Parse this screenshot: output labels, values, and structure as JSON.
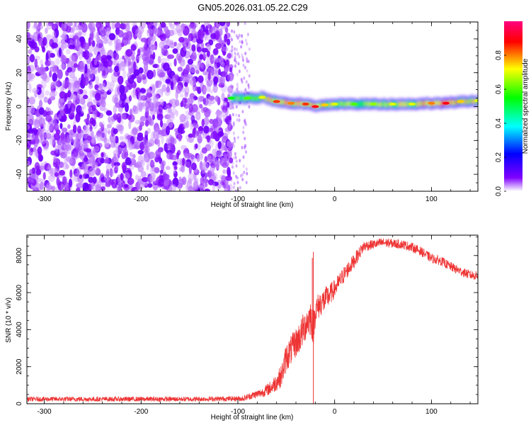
{
  "title": "GN05.2026.031.05.22.C29",
  "chart_data": [
    {
      "type": "heatmap",
      "xlabel": "Height of straight line (km)",
      "ylabel": "Frequency (Hz)",
      "xlim": [
        -318,
        148
      ],
      "ylim": [
        -50,
        50
      ],
      "xticks": [
        -300,
        -200,
        -100,
        0,
        100
      ],
      "yticks": [
        -40,
        -20,
        0,
        20,
        40
      ],
      "colorbar": {
        "label": "Normalized spectral amplitude",
        "range": [
          0,
          1
        ],
        "ticks": [
          0.0,
          0.2,
          0.4,
          0.6,
          0.8
        ],
        "colormap": [
          "#ffffff",
          "#8000ff",
          "#0000ff",
          "#00ffff",
          "#00ff00",
          "#ffff00",
          "#ff0000",
          "#ff0080"
        ]
      },
      "noise_region": {
        "x_start": -318,
        "x_end": -107,
        "sparse_until": -88,
        "amplitude_range": [
          0.0,
          0.25
        ]
      },
      "signal_track": [
        {
          "x": -107,
          "y": 5.0,
          "amp": 0.55
        },
        {
          "x": -90,
          "y": 5.0,
          "amp": 0.6
        },
        {
          "x": -75,
          "y": 5.5,
          "amp": 0.7
        },
        {
          "x": -60,
          "y": 3.0,
          "amp": 0.85
        },
        {
          "x": -45,
          "y": 2.0,
          "amp": 0.8
        },
        {
          "x": -30,
          "y": 1.5,
          "amp": 0.85
        },
        {
          "x": -20,
          "y": 0.0,
          "amp": 0.9
        },
        {
          "x": -10,
          "y": 1.0,
          "amp": 0.75
        },
        {
          "x": 0,
          "y": 1.5,
          "amp": 0.7
        },
        {
          "x": 20,
          "y": 1.5,
          "amp": 0.6
        },
        {
          "x": 40,
          "y": 1.5,
          "amp": 0.65
        },
        {
          "x": 60,
          "y": 1.5,
          "amp": 0.7
        },
        {
          "x": 80,
          "y": 1.5,
          "amp": 0.7
        },
        {
          "x": 100,
          "y": 2.0,
          "amp": 0.8
        },
        {
          "x": 115,
          "y": 2.0,
          "amp": 0.9
        },
        {
          "x": 130,
          "y": 3.0,
          "amp": 0.75
        },
        {
          "x": 148,
          "y": 3.5,
          "amp": 0.7
        }
      ]
    },
    {
      "type": "line",
      "xlabel": "Height of straight line (km)",
      "ylabel": "SNR (10 * v/v)",
      "xlim": [
        -318,
        148
      ],
      "ylim": [
        0,
        9100
      ],
      "xticks": [
        -300,
        -200,
        -100,
        0,
        100
      ],
      "yticks": [
        0,
        2000,
        4000,
        6000,
        8000
      ],
      "color": "#ee3333",
      "series": [
        {
          "x": [
            -318,
            -250,
            -200,
            -150,
            -110,
            -95,
            -85,
            -75,
            -65,
            -55,
            -50,
            -45,
            -40,
            -35,
            -30,
            -25,
            -22,
            -20,
            -15,
            -10,
            -5,
            0,
            10,
            20,
            30,
            40,
            50,
            60,
            70,
            80,
            90,
            100,
            110,
            120,
            130,
            140,
            148
          ],
          "y": [
            250,
            250,
            250,
            250,
            270,
            280,
            450,
            600,
            900,
            1500,
            2500,
            2900,
            3300,
            3700,
            4300,
            4700,
            4100,
            5000,
            5400,
            5600,
            5900,
            6200,
            7000,
            7700,
            8500,
            8600,
            8700,
            8650,
            8600,
            8450,
            8200,
            7850,
            7700,
            7400,
            7150,
            6950,
            6900
          ],
          "noise": [
            130,
            130,
            130,
            130,
            130,
            150,
            200,
            250,
            400,
            600,
            800,
            800,
            800,
            900,
            900,
            1000,
            1000,
            800,
            700,
            700,
            600,
            500,
            450,
            400,
            300,
            250,
            250,
            250,
            250,
            250,
            250,
            250,
            250,
            250,
            250,
            250,
            250
          ]
        }
      ],
      "spikes": [
        {
          "x": -22,
          "ymin": 0,
          "ymax": 8200
        }
      ]
    }
  ]
}
